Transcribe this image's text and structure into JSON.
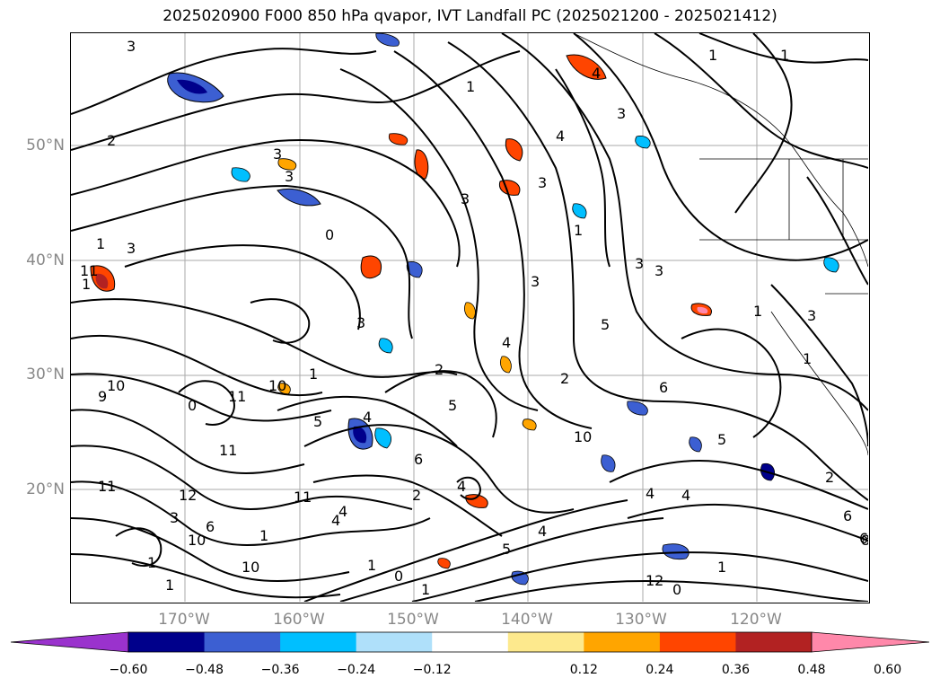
{
  "title": "2025020900 F000 850 hPa qvapor, IVT Landfall PC (2025021200 - 2025021412)",
  "lat_ticks": [
    "50°N",
    "40°N",
    "30°N",
    "20°N"
  ],
  "lon_ticks": [
    "170°W",
    "160°W",
    "150°W",
    "140°W",
    "130°W",
    "120°W"
  ],
  "colorbar": {
    "labels": [
      "−0.60",
      "−0.48",
      "−0.36",
      "−0.24",
      "−0.12",
      "0.12",
      "0.24",
      "0.36",
      "0.48",
      "0.60"
    ],
    "colors": [
      "#9a32cd",
      "#00008b",
      "#3c5fd2",
      "#00bfff",
      "#afe0fa",
      "#ffffff",
      "#fde98d",
      "#ffa500",
      "#ff4500",
      "#b22222",
      "#ff88aa"
    ]
  },
  "contour_labels": [
    "1",
    "2",
    "3",
    "4",
    "5",
    "6",
    "8",
    "9",
    "10",
    "11",
    "12",
    "0"
  ],
  "colors": {
    "grid": "#aaaaaa",
    "contour": "#000000"
  }
}
